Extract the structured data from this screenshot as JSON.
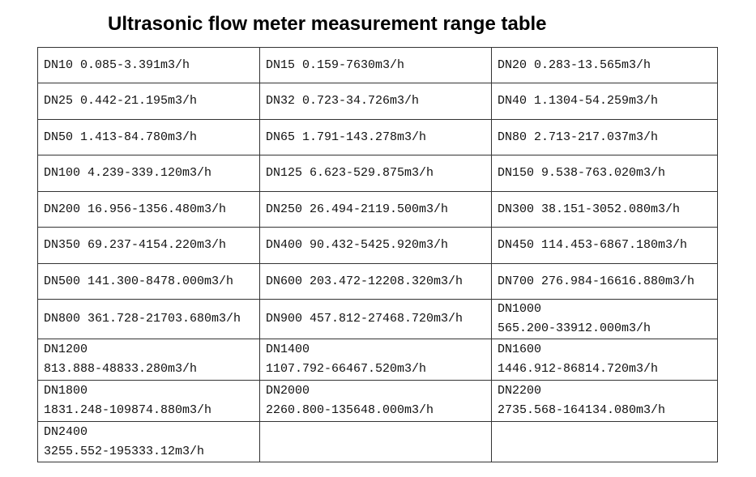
{
  "title": "Ultrasonic flow meter measurement range table",
  "table": {
    "rows": [
      [
        "DN10 0.085-3.391m3/h",
        "DN15 0.159-7630m3/h",
        "DN20 0.283-13.565m3/h"
      ],
      [
        "DN25 0.442-21.195m3/h",
        "DN32 0.723-34.726m3/h",
        "DN40 1.1304-54.259m3/h"
      ],
      [
        "DN50 1.413-84.780m3/h",
        "DN65 1.791-143.278m3/h",
        "DN80 2.713-217.037m3/h"
      ],
      [
        "DN100 4.239-339.120m3/h",
        "DN125 6.623-529.875m3/h",
        "DN150 9.538-763.020m3/h"
      ],
      [
        "DN200 16.956-1356.480m3/h",
        "DN250 26.494-2119.500m3/h",
        "DN300 38.151-3052.080m3/h"
      ],
      [
        "DN350 69.237-4154.220m3/h",
        "DN400 90.432-5425.920m3/h",
        "DN450 114.453-6867.180m3/h"
      ],
      [
        "DN500 141.300-8478.000m3/h",
        "DN600 203.472-12208.320m3/h",
        "DN700 276.984-16616.880m3/h"
      ],
      [
        "DN800 361.728-21703.680m3/h",
        "DN900 457.812-27468.720m3/h",
        [
          "DN1000",
          "565.200-33912.000m3/h"
        ]
      ],
      [
        [
          "DN1200",
          "813.888-48833.280m3/h"
        ],
        [
          "DN1400",
          "1107.792-66467.520m3/h"
        ],
        [
          "DN1600",
          "1446.912-86814.720m3/h"
        ]
      ],
      [
        [
          "DN1800",
          "1831.248-109874.880m3/h"
        ],
        [
          "DN2000",
          "2260.800-135648.000m3/h"
        ],
        [
          "DN2200",
          "2735.568-164134.080m3/h"
        ]
      ],
      [
        [
          "DN2400",
          "3255.552-195333.12m3/h"
        ]
      ]
    ]
  }
}
